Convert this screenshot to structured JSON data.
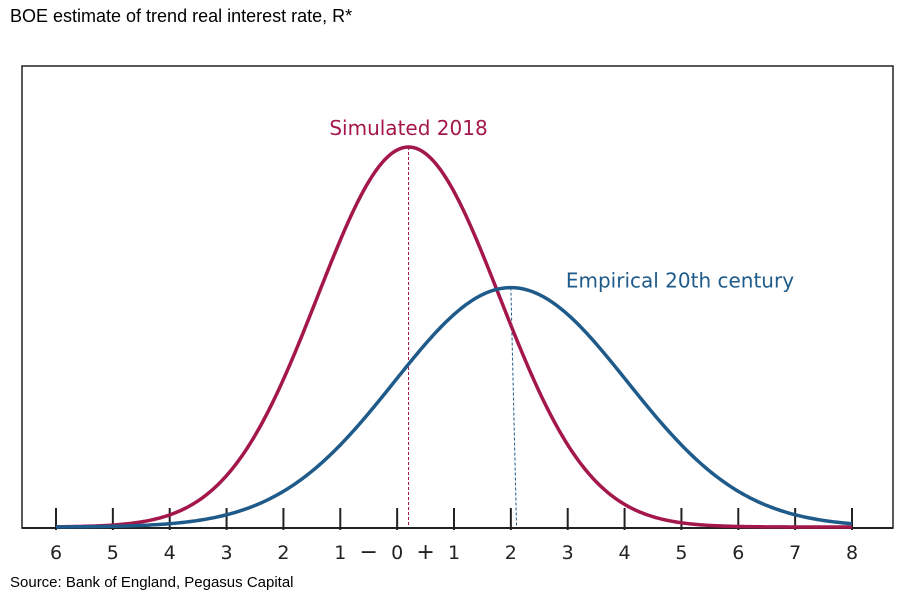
{
  "title": "BOE estimate of trend real interest rate, R*",
  "source": "Source: Bank of England, Pegasus Capital",
  "chart_data": {
    "type": "line",
    "x_ticks": [
      -6,
      -5,
      -4,
      -3,
      -2,
      -1,
      0,
      1,
      2,
      3,
      4,
      5,
      6,
      7,
      8
    ],
    "tick_labels": [
      "6",
      "5",
      "4",
      "3",
      "2",
      "1",
      "0",
      "1",
      "2",
      "3",
      "4",
      "5",
      "6",
      "7",
      "8"
    ],
    "sign_labels": {
      "negative": "−",
      "positive": "+"
    },
    "xlim": [
      -6,
      8
    ],
    "y_axis_labels": false,
    "grid": false,
    "series": [
      {
        "name": "Simulated 2018",
        "distribution": "normal",
        "mean": 0.2,
        "sd": 1.6,
        "peak_relative": 1.0,
        "color": "#a3174b",
        "peak_marker": 0.2
      },
      {
        "name": "Empirical 20th century",
        "distribution": "normal",
        "mean": 2.0,
        "sd": 2.05,
        "peak_relative": 0.63,
        "color": "#1f5b8a",
        "peak_marker": 2.1
      }
    ]
  }
}
